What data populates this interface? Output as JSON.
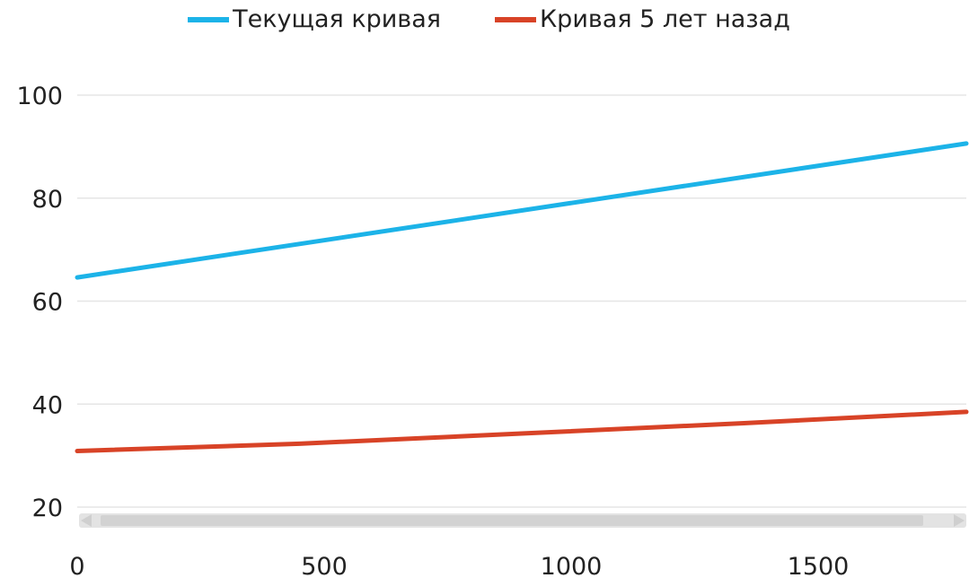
{
  "chart_data": {
    "type": "line",
    "title": "",
    "xlabel": "",
    "ylabel": "",
    "xlim": [
      0,
      1800
    ],
    "ylim": [
      20,
      100
    ],
    "x_ticks": [
      0,
      500,
      1000,
      1500
    ],
    "y_ticks": [
      20,
      40,
      60,
      80,
      100
    ],
    "grid": "horizontal",
    "legend_position": "top",
    "series": [
      {
        "name": "Текущая кривая",
        "color": "#1cb3e8",
        "x": [
          0,
          1800
        ],
        "y": [
          64.6,
          90.6
        ]
      },
      {
        "name": "Кривая 5 лет назад",
        "color": "#d84327",
        "x": [
          0,
          450,
          900,
          1350,
          1800
        ],
        "y": [
          30.9,
          32.3,
          34.3,
          36.3,
          38.5
        ]
      }
    ],
    "scrollbar": {
      "visible": true
    }
  }
}
